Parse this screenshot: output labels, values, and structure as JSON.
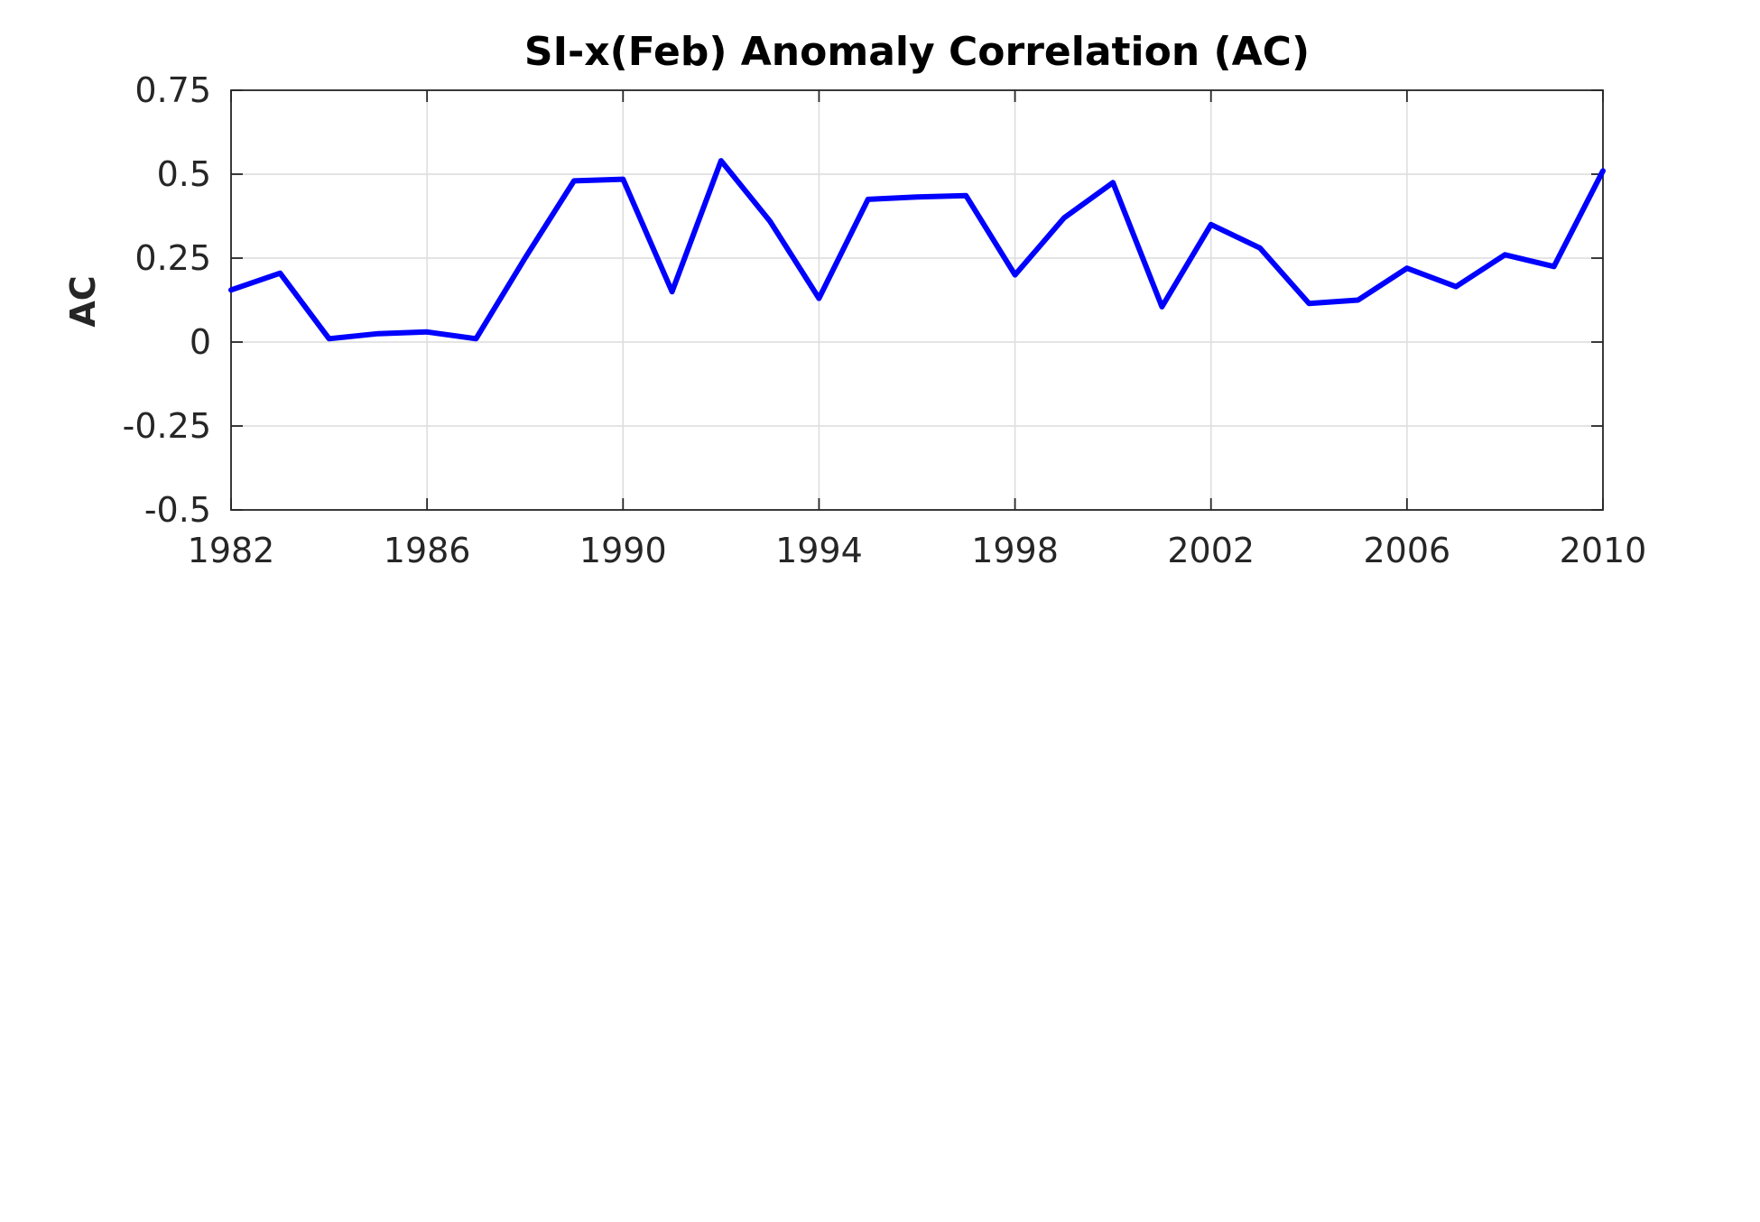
{
  "chart_data": {
    "type": "line",
    "title": "SI-x(Feb) Anomaly Correlation (AC)",
    "xlabel": "",
    "ylabel": "AC",
    "xlim": [
      1982,
      2010
    ],
    "ylim": [
      -0.5,
      0.75
    ],
    "xticks": [
      1982,
      1986,
      1990,
      1994,
      1998,
      2002,
      2006,
      2010
    ],
    "yticks": [
      -0.5,
      -0.25,
      0,
      0.25,
      0.5,
      0.75
    ],
    "ytick_labels": [
      "-0.5",
      "-0.25",
      "0",
      "0.25",
      "0.5",
      "0.75"
    ],
    "grid": true,
    "line_color": "#0000ff",
    "series": [
      {
        "x": [
          1982,
          1983,
          1984,
          1985,
          1986,
          1987,
          1988,
          1989,
          1990,
          1991,
          1992,
          1993,
          1994,
          1995,
          1996,
          1997,
          1998,
          1999,
          2000,
          2001,
          2002,
          2003,
          2004,
          2005,
          2006,
          2007,
          2008,
          2009,
          2010
        ],
        "values": [
          0.155,
          0.205,
          0.01,
          0.025,
          0.03,
          0.01,
          0.25,
          0.48,
          0.485,
          0.15,
          0.54,
          0.36,
          0.13,
          0.425,
          0.432,
          0.436,
          0.2,
          0.37,
          0.475,
          0.105,
          0.35,
          0.28,
          0.115,
          0.125,
          0.22,
          0.165,
          0.26,
          0.225,
          0.51
        ]
      }
    ]
  }
}
